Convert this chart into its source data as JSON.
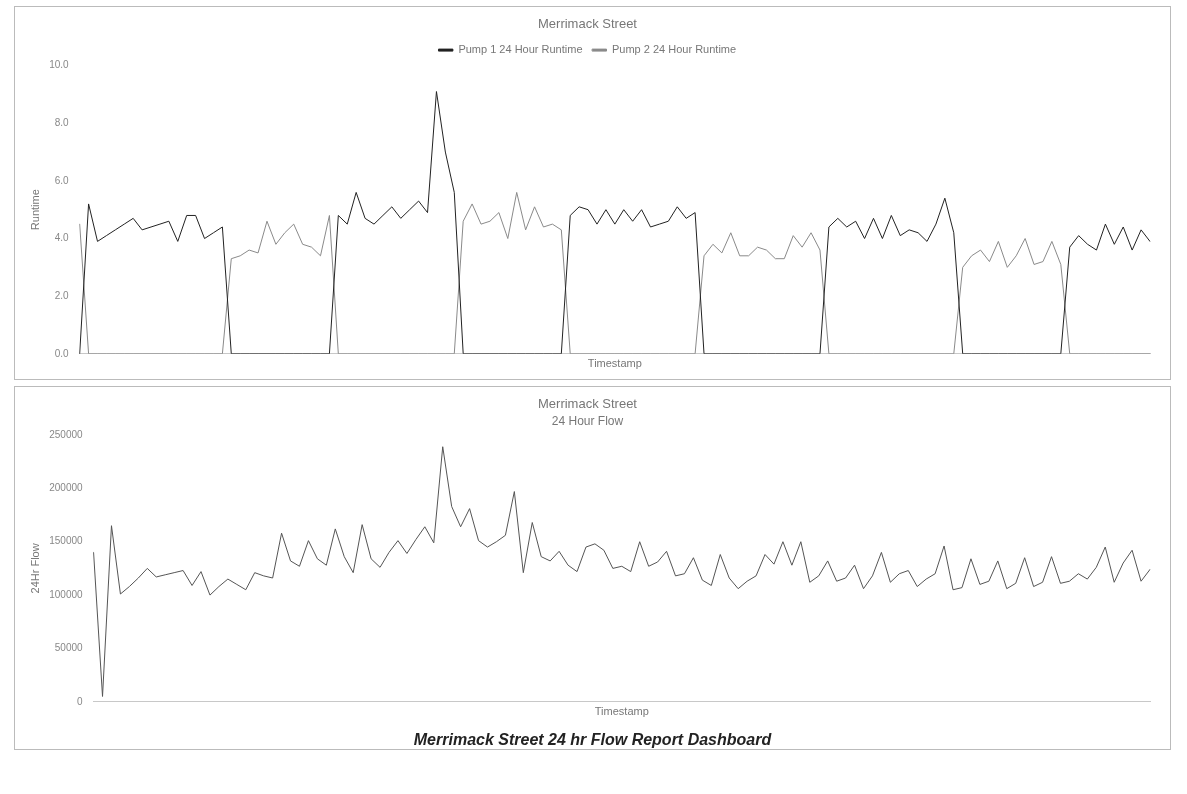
{
  "chart_data": [
    {
      "type": "line",
      "title": "Merrimack Street",
      "xlabel": "Timestamp",
      "ylabel": "Runtime",
      "categories": [
        null,
        null,
        null,
        null,
        null,
        null,
        null,
        null,
        null,
        null,
        null,
        null,
        null,
        null,
        null,
        null,
        null,
        null,
        null,
        null,
        null,
        null,
        null,
        null,
        null,
        null,
        null,
        null,
        null,
        null,
        null,
        null,
        null,
        null,
        null,
        null,
        null,
        null,
        null,
        null,
        null,
        null,
        null,
        null,
        null,
        null,
        null,
        null,
        null,
        null,
        null,
        null,
        null,
        null,
        null,
        null,
        null,
        null,
        null,
        null,
        null,
        null,
        null,
        null,
        null,
        null,
        null,
        null,
        null,
        null,
        null,
        null,
        null,
        null,
        null,
        null,
        null,
        null,
        null,
        null,
        null,
        null,
        null,
        null,
        null,
        null,
        null,
        null,
        null,
        null,
        null,
        null,
        null,
        null,
        null,
        null,
        null,
        null,
        null,
        null,
        null,
        null,
        null,
        null,
        null,
        null,
        null,
        null,
        null,
        null,
        null,
        null,
        null,
        null,
        null,
        null,
        null,
        null,
        null,
        null,
        null
      ],
      "series": [
        {
          "name": "Pump 1 24 Hour Runtime",
          "color": "#222222",
          "values": [
            0,
            5.2,
            3.9,
            4.1,
            4.3,
            4.5,
            4.7,
            4.3,
            4.4,
            4.5,
            4.6,
            3.9,
            4.8,
            4.8,
            4.0,
            4.2,
            4.4,
            0,
            0,
            0,
            0,
            0,
            0,
            0,
            0,
            0,
            0,
            0,
            0,
            4.8,
            4.5,
            5.6,
            4.7,
            4.5,
            4.8,
            5.1,
            4.7,
            5.0,
            5.3,
            4.9,
            9.1,
            7.0,
            5.6,
            0,
            0,
            0,
            0,
            0,
            0,
            0,
            0,
            0,
            0,
            0,
            0,
            4.8,
            5.1,
            5.0,
            4.5,
            5.0,
            4.5,
            5.0,
            4.6,
            5.0,
            4.4,
            4.5,
            4.6,
            5.1,
            4.7,
            4.9,
            0,
            0,
            0,
            0,
            0,
            0,
            0,
            0,
            0,
            0,
            0,
            0,
            0,
            0,
            4.4,
            4.7,
            4.4,
            4.6,
            4.0,
            4.7,
            4.0,
            4.8,
            4.1,
            4.3,
            4.2,
            3.9,
            4.5,
            5.4,
            4.2,
            0,
            0,
            0,
            0,
            0,
            0,
            0,
            0,
            0,
            0,
            0,
            0,
            3.7,
            4.1,
            3.8,
            3.6,
            4.5,
            3.8,
            4.4,
            3.6,
            4.3,
            3.9
          ]
        },
        {
          "name": "Pump 2 24 Hour Runtime",
          "color": "#8a8a8a",
          "values": [
            4.5,
            0,
            0,
            0,
            0,
            0,
            0,
            0,
            0,
            0,
            0,
            0,
            0,
            0,
            0,
            0,
            0,
            3.3,
            3.4,
            3.6,
            3.5,
            4.6,
            3.8,
            4.2,
            4.5,
            3.8,
            3.7,
            3.4,
            4.8,
            0,
            0,
            0,
            0,
            0,
            0,
            0,
            0,
            0,
            0,
            0,
            0,
            0,
            0,
            4.6,
            5.2,
            4.5,
            4.6,
            4.9,
            4.0,
            5.6,
            4.3,
            5.1,
            4.4,
            4.5,
            4.3,
            0,
            0,
            0,
            0,
            0,
            0,
            0,
            0,
            0,
            0,
            0,
            0,
            0,
            0,
            0,
            3.4,
            3.8,
            3.5,
            4.2,
            3.4,
            3.4,
            3.7,
            3.6,
            3.3,
            3.3,
            4.1,
            3.7,
            4.2,
            3.6,
            0,
            0,
            0,
            0,
            0,
            0,
            0,
            0,
            0,
            0,
            0,
            0,
            0,
            0,
            0,
            3.0,
            3.4,
            3.6,
            3.2,
            3.9,
            3.0,
            3.4,
            4.0,
            3.1,
            3.2,
            3.9,
            3.1,
            0,
            0,
            0,
            0,
            0,
            0,
            0,
            0,
            0,
            0
          ]
        }
      ],
      "ylim": [
        0,
        10
      ],
      "yticks": [
        {
          "value": 0,
          "label": "0.0"
        },
        {
          "value": 2,
          "label": "2.0"
        },
        {
          "value": 4,
          "label": "4.0"
        },
        {
          "value": 6,
          "label": "6.0"
        },
        {
          "value": 8,
          "label": "8.0"
        },
        {
          "value": 10,
          "label": "10.0"
        }
      ],
      "grid": false,
      "legend": "top",
      "marker": "none",
      "line_style": "solid",
      "tick_labels": "y"
    },
    {
      "type": "line",
      "title": "Merrimack Street",
      "subtitle": "24 Hour Flow",
      "xlabel": "Timestamp",
      "ylabel": "24Hr Flow",
      "categories": [
        null,
        null,
        null,
        null,
        null,
        null,
        null,
        null,
        null,
        null,
        null,
        null,
        null,
        null,
        null,
        null,
        null,
        null,
        null,
        null,
        null,
        null,
        null,
        null,
        null,
        null,
        null,
        null,
        null,
        null,
        null,
        null,
        null,
        null,
        null,
        null,
        null,
        null,
        null,
        null,
        null,
        null,
        null,
        null,
        null,
        null,
        null,
        null,
        null,
        null,
        null,
        null,
        null,
        null,
        null,
        null,
        null,
        null,
        null,
        null,
        null,
        null,
        null,
        null,
        null,
        null,
        null,
        null,
        null,
        null,
        null,
        null,
        null,
        null,
        null,
        null,
        null,
        null,
        null,
        null,
        null,
        null,
        null,
        null,
        null,
        null,
        null,
        null,
        null,
        null,
        null,
        null,
        null,
        null,
        null,
        null,
        null,
        null,
        null,
        null,
        null,
        null,
        null,
        null,
        null,
        null,
        null,
        null,
        null,
        null,
        null,
        null,
        null,
        null,
        null,
        null,
        null,
        null,
        null
      ],
      "series": [
        {
          "color": "#555555",
          "values": [
            140000,
            5000,
            165000,
            101000,
            108000,
            116000,
            125000,
            117000,
            119000,
            121000,
            123000,
            109000,
            122000,
            100000,
            108000,
            115000,
            110000,
            105000,
            121000,
            118000,
            116000,
            158000,
            132000,
            127000,
            151000,
            134000,
            128000,
            162000,
            136000,
            121000,
            166000,
            134000,
            126000,
            140000,
            151000,
            139000,
            152000,
            164000,
            149000,
            239000,
            183000,
            164000,
            181000,
            151000,
            145000,
            150000,
            156000,
            197000,
            121000,
            168000,
            136000,
            132000,
            141000,
            128000,
            122000,
            145000,
            148000,
            142000,
            125000,
            127000,
            122000,
            150000,
            127000,
            131000,
            141000,
            118000,
            120000,
            135000,
            114000,
            109000,
            138000,
            116000,
            106000,
            113000,
            118000,
            138000,
            129000,
            150000,
            128000,
            150000,
            112000,
            118000,
            132000,
            113000,
            116000,
            128000,
            106000,
            118000,
            140000,
            112000,
            120000,
            123000,
            108000,
            115000,
            120000,
            146000,
            105000,
            107000,
            134000,
            110000,
            113000,
            132000,
            106000,
            111000,
            135000,
            108000,
            112000,
            136000,
            111000,
            113000,
            120000,
            115000,
            126000,
            145000,
            112000,
            130000,
            142000,
            113000,
            124000
          ]
        }
      ],
      "ylim": [
        0,
        250000
      ],
      "yticks": [
        0,
        50000,
        100000,
        150000,
        200000,
        250000
      ],
      "grid": false,
      "legend": false,
      "marker": "none",
      "line_style": "solid",
      "tick_labels": "y",
      "annotations": [
        "Merrimack Street 24 hr Flow Report Dashboard"
      ]
    }
  ]
}
